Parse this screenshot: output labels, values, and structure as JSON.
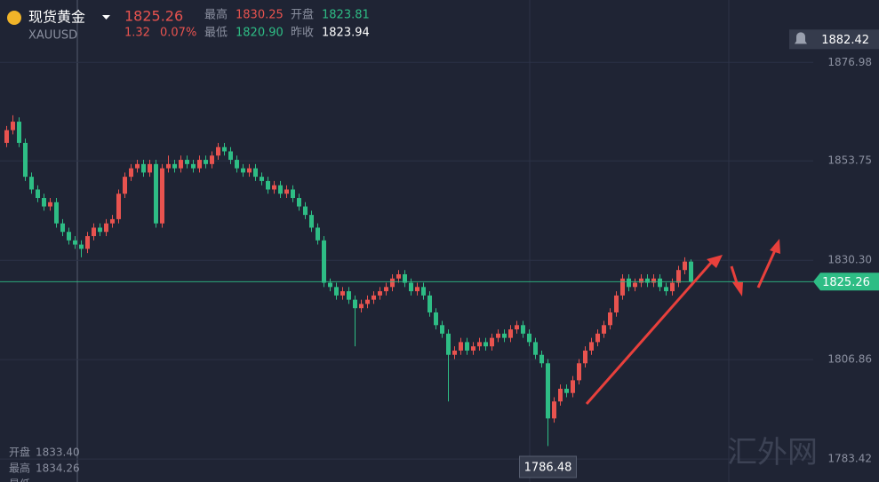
{
  "header": {
    "name": "现货黄金",
    "symbol": "XAUUSD",
    "price": "1825.26",
    "change": "1.32",
    "change_pct": "0.07%",
    "high_label": "最高",
    "high": "1830.25",
    "open_label": "开盘",
    "open": "1823.81",
    "low_label": "最低",
    "low": "1820.90",
    "prev_label": "昨收",
    "prev": "1823.94"
  },
  "crosshair_info": {
    "open_label": "开盘",
    "open": "1833.40",
    "high_label": "最高",
    "high": "1834.26",
    "low_label": "最低"
  },
  "watermark": "汇外网",
  "chart_data": {
    "type": "candlestick",
    "up_color": "#e8534f",
    "down_color": "#2ebd85",
    "ylim": [
      1778,
      1885
    ],
    "yticks": [
      1876.98,
      1853.75,
      {
        "value": 1830.3,
        "label": "1830.30"
      },
      1806.86,
      1783.42
    ],
    "alert_price": 1882.42,
    "open": [
      1858,
      1861,
      1863,
      1858,
      1850,
      1847,
      1845,
      1843,
      1844,
      1839,
      1837,
      1835,
      1834,
      1833,
      1836,
      1838,
      1837,
      1839,
      1840,
      1846,
      1850,
      1852,
      1853,
      1851,
      1853,
      1839,
      1852,
      1853,
      1852,
      1854,
      1853,
      1852,
      1854,
      1853,
      1855,
      1857,
      1856,
      1854,
      1852,
      1851,
      1852,
      1850,
      1849,
      1847,
      1848,
      1846,
      1847,
      1845,
      1843,
      1841,
      1838,
      1835,
      1825,
      1824,
      1822,
      1823,
      1821,
      1819,
      1820,
      1821,
      1822,
      1823,
      1824,
      1826,
      1827,
      1825,
      1823,
      1824,
      1822,
      1818,
      1815,
      1813,
      1808,
      1809,
      1811,
      1809,
      1810,
      1811,
      1810,
      1812,
      1813,
      1812,
      1814,
      1815,
      1813,
      1811,
      1808,
      1806,
      1793,
      1797,
      1800,
      1799,
      1802,
      1806,
      1809,
      1811,
      1813,
      1815,
      1818,
      1822,
      1826,
      1824,
      1825,
      1826,
      1825,
      1826,
      1824,
      1823,
      1825,
      1828,
      1830
    ],
    "high": [
      1862,
      1864.5,
      1864,
      1859,
      1851,
      1848,
      1846,
      1845,
      1845,
      1840,
      1838,
      1836,
      1835,
      1837,
      1839,
      1839,
      1840,
      1841,
      1847,
      1851,
      1853,
      1854,
      1854,
      1854,
      1854,
      1853,
      1855,
      1854,
      1855,
      1855,
      1854,
      1855,
      1855,
      1856,
      1858,
      1858,
      1857,
      1855,
      1853,
      1853,
      1853,
      1851,
      1850,
      1849,
      1849,
      1848,
      1848,
      1846,
      1844,
      1842,
      1839,
      1836,
      1826,
      1825,
      1824,
      1824,
      1822,
      1821,
      1822,
      1823,
      1824,
      1825,
      1827,
      1828,
      1828,
      1826,
      1825,
      1825,
      1823,
      1819,
      1816,
      1814,
      1810,
      1812,
      1812,
      1811,
      1812,
      1812,
      1813,
      1814,
      1814,
      1815,
      1816,
      1816,
      1814,
      1812,
      1809,
      1807,
      1798,
      1801,
      1801,
      1803,
      1807,
      1810,
      1812,
      1814,
      1816,
      1819,
      1823,
      1827,
      1827,
      1826,
      1827,
      1827,
      1827,
      1827,
      1825,
      1826,
      1829,
      1831,
      1830.5
    ],
    "low": [
      1857,
      1860,
      1857,
      1849,
      1846,
      1844,
      1842,
      1842,
      1838,
      1836,
      1834,
      1833,
      1831,
      1832,
      1835,
      1836,
      1836,
      1838,
      1839,
      1845,
      1849,
      1851,
      1850,
      1850,
      1838,
      1838,
      1851,
      1851,
      1851,
      1852,
      1851,
      1851,
      1852,
      1852,
      1854,
      1855,
      1853,
      1851,
      1850,
      1850,
      1849,
      1848,
      1846,
      1846,
      1845,
      1845,
      1844,
      1842,
      1840,
      1837,
      1834,
      1824,
      1823,
      1821,
      1821,
      1820,
      1810,
      1818,
      1819,
      1820,
      1821,
      1822,
      1823,
      1825,
      1824,
      1822,
      1822,
      1821,
      1817,
      1814,
      1812,
      1797,
      1807,
      1808,
      1808,
      1808,
      1809,
      1809,
      1809,
      1811,
      1811,
      1811,
      1813,
      1812,
      1810,
      1807,
      1805,
      1786.48,
      1792,
      1796,
      1798,
      1798,
      1801,
      1805,
      1808,
      1810,
      1812,
      1814,
      1817,
      1821,
      1823,
      1823,
      1824,
      1824,
      1824,
      1823,
      1822,
      1822,
      1824,
      1827,
      1825
    ],
    "close": [
      1861,
      1863,
      1858,
      1850,
      1847,
      1845,
      1843,
      1844,
      1839,
      1837,
      1835,
      1834,
      1833,
      1836,
      1838,
      1837,
      1839,
      1840,
      1846,
      1850,
      1852,
      1853,
      1851,
      1853,
      1839,
      1852,
      1853,
      1852,
      1854,
      1853,
      1852,
      1854,
      1853,
      1855,
      1857,
      1856,
      1854,
      1852,
      1851,
      1852,
      1850,
      1849,
      1847,
      1848,
      1846,
      1847,
      1845,
      1843,
      1841,
      1838,
      1835,
      1825,
      1824,
      1822,
      1823,
      1821,
      1819,
      1820,
      1821,
      1822,
      1823,
      1824,
      1826,
      1827,
      1825,
      1823,
      1824,
      1822,
      1818,
      1815,
      1813,
      1808,
      1809,
      1811,
      1809,
      1810,
      1811,
      1810,
      1812,
      1813,
      1812,
      1814,
      1815,
      1813,
      1811,
      1808,
      1806,
      1793,
      1797,
      1800,
      1799,
      1802,
      1806,
      1809,
      1811,
      1813,
      1815,
      1818,
      1822,
      1826,
      1824,
      1825,
      1826,
      1825,
      1826,
      1824,
      1823,
      1825,
      1828,
      1830,
      1825.26
    ]
  }
}
